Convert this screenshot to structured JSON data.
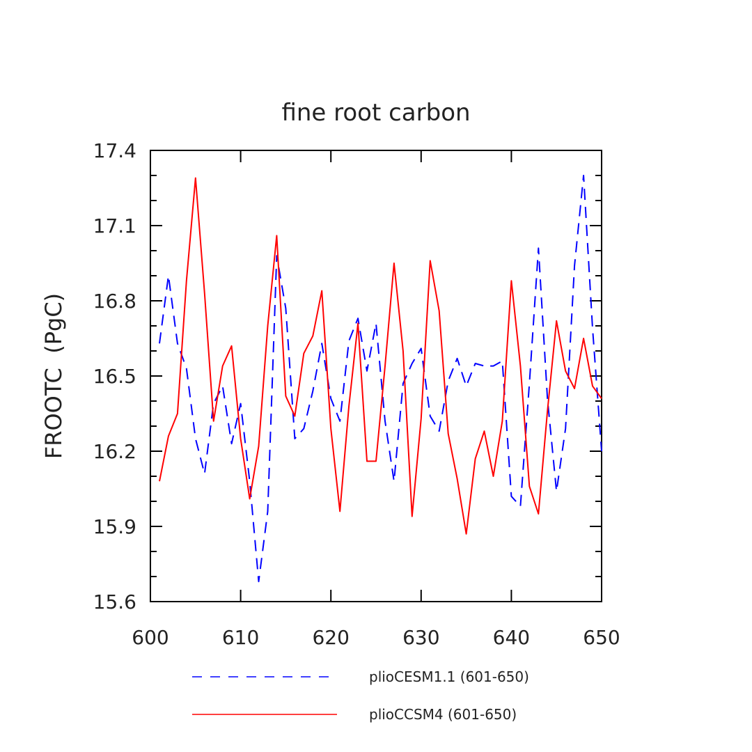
{
  "chart_data": {
    "type": "line",
    "title": "fine root carbon",
    "ylabel": "FROOTC  (PgC)",
    "xlabel": "",
    "xlim": [
      600,
      650
    ],
    "ylim": [
      15.6,
      17.4
    ],
    "x_ticks": [
      "600",
      "610",
      "620",
      "630",
      "640",
      "650"
    ],
    "y_ticks": [
      "15.6",
      "15.9",
      "16.2",
      "16.5",
      "16.8",
      "17.1",
      "17.4"
    ],
    "x": [
      601,
      602,
      603,
      604,
      605,
      606,
      607,
      608,
      609,
      610,
      611,
      612,
      613,
      614,
      615,
      616,
      617,
      618,
      619,
      620,
      621,
      622,
      623,
      624,
      625,
      626,
      627,
      628,
      629,
      630,
      631,
      632,
      633,
      634,
      635,
      636,
      637,
      638,
      639,
      640,
      641,
      642,
      643,
      644,
      645,
      646,
      647,
      648,
      649,
      650
    ],
    "series": [
      {
        "name": "plioCESM1.1 (601-650)",
        "color": "#0000ff",
        "dash": "dashed",
        "values": [
          16.63,
          16.9,
          16.63,
          16.53,
          16.25,
          16.11,
          16.39,
          16.46,
          16.23,
          16.39,
          16.08,
          15.68,
          15.96,
          16.98,
          16.77,
          16.25,
          16.29,
          16.44,
          16.63,
          16.41,
          16.32,
          16.64,
          16.73,
          16.52,
          16.71,
          16.32,
          16.08,
          16.47,
          16.55,
          16.61,
          16.34,
          16.28,
          16.48,
          16.57,
          16.46,
          16.55,
          16.54,
          16.54,
          16.56,
          16.02,
          15.98,
          16.47,
          17.01,
          16.41,
          16.04,
          16.29,
          16.94,
          17.3,
          16.69,
          16.2
        ]
      },
      {
        "name": "plioCCSM4 (601-650)",
        "color": "#ff0000",
        "dash": "solid",
        "values": [
          16.08,
          16.26,
          16.35,
          16.88,
          17.29,
          16.83,
          16.32,
          16.54,
          16.62,
          16.25,
          16.01,
          16.22,
          16.7,
          17.06,
          16.42,
          16.34,
          16.59,
          16.66,
          16.84,
          16.29,
          15.96,
          16.38,
          16.71,
          16.16,
          16.16,
          16.54,
          16.95,
          16.6,
          15.94,
          16.33,
          16.96,
          16.76,
          16.27,
          16.09,
          15.87,
          16.17,
          16.28,
          16.1,
          16.32,
          16.88,
          16.54,
          16.06,
          15.95,
          16.36,
          16.72,
          16.52,
          16.45,
          16.65,
          16.46,
          16.41
        ]
      }
    ]
  }
}
